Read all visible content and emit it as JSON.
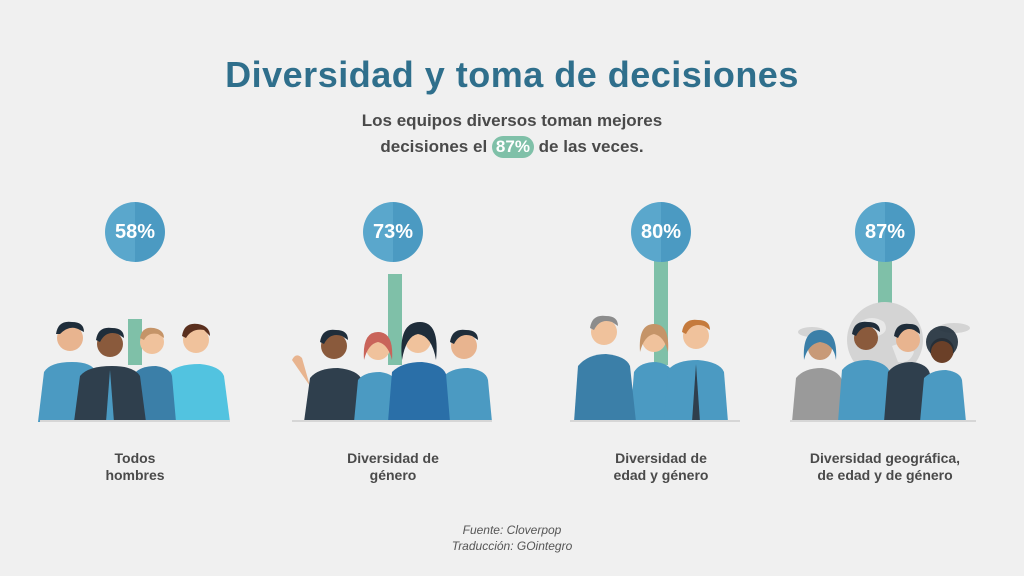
{
  "title": "Diversidad y toma de decisiones",
  "subtitle": {
    "line1": "Los equipos diversos toman mejores",
    "line2_before": "decisiones el",
    "line2_highlight": "87%",
    "line2_after": "de las veces."
  },
  "colors": {
    "title": "#2f6f8c",
    "badge": "#5aa7cc",
    "bar": "#7fc0a8",
    "highlight": "#7fc0a8",
    "text": "#4a4a4a"
  },
  "chart_data": {
    "type": "bar",
    "categories": [
      "Todos hombres",
      "Diversidad de género",
      "Diversidad de edad y género",
      "Diversidad geográfica, de edad y de género"
    ],
    "values": [
      58,
      73,
      80,
      87
    ],
    "value_labels": [
      "58%",
      "73%",
      "80%",
      "87%"
    ],
    "category_lines": [
      [
        "Todos",
        "hombres"
      ],
      [
        "Diversidad de",
        "género"
      ],
      [
        "Diversidad de",
        "edad y género"
      ],
      [
        "Diversidad geográfica,",
        "de edad y de género"
      ]
    ],
    "ylim": [
      0,
      100
    ]
  },
  "source": {
    "line1": "Fuente: Cloverpop",
    "line2": "Traducción: GOintegro"
  }
}
